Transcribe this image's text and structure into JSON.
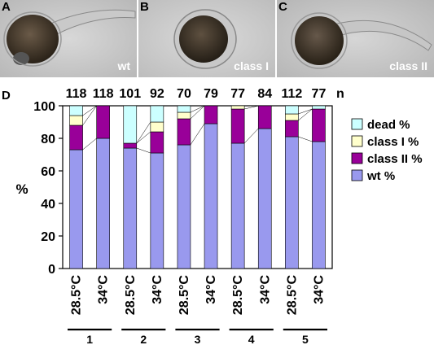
{
  "panels": [
    {
      "letter": "A",
      "caption": "wt"
    },
    {
      "letter": "B",
      "caption": "class I"
    },
    {
      "letter": "C",
      "caption": "class II"
    }
  ],
  "chart_panel_letter": "D",
  "chart_data": {
    "type": "bar",
    "stacked": true,
    "ylabel": "%",
    "ylim": [
      0,
      100
    ],
    "yticks": [
      0,
      20,
      40,
      60,
      80,
      100
    ],
    "n_label": "n",
    "categories": [
      "28.5°C",
      "34°C",
      "28.5°C",
      "34°C",
      "28.5°C",
      "34°C",
      "28.5°C",
      "34°C",
      "28.5°C",
      "34°C"
    ],
    "groups": [
      "1",
      "2",
      "3",
      "4",
      "5"
    ],
    "n": [
      118,
      118,
      101,
      92,
      70,
      79,
      77,
      84,
      112,
      77
    ],
    "legend_position": "right",
    "series": [
      {
        "name": "wt %",
        "color": "#9999ee",
        "values": [
          73,
          80,
          74,
          71,
          76,
          89,
          77,
          86,
          81,
          78
        ]
      },
      {
        "name": "class II %",
        "color": "#990099",
        "values": [
          15,
          20,
          3,
          13,
          16,
          11,
          21,
          14,
          10,
          20
        ]
      },
      {
        "name": "class I %",
        "color": "#ffffcc",
        "values": [
          6,
          0,
          0,
          6,
          4,
          0,
          2,
          0,
          4,
          0
        ]
      },
      {
        "name": "dead %",
        "color": "#ccffff",
        "values": [
          6,
          0,
          23,
          10,
          4,
          0,
          0,
          0,
          5,
          2
        ]
      }
    ]
  }
}
